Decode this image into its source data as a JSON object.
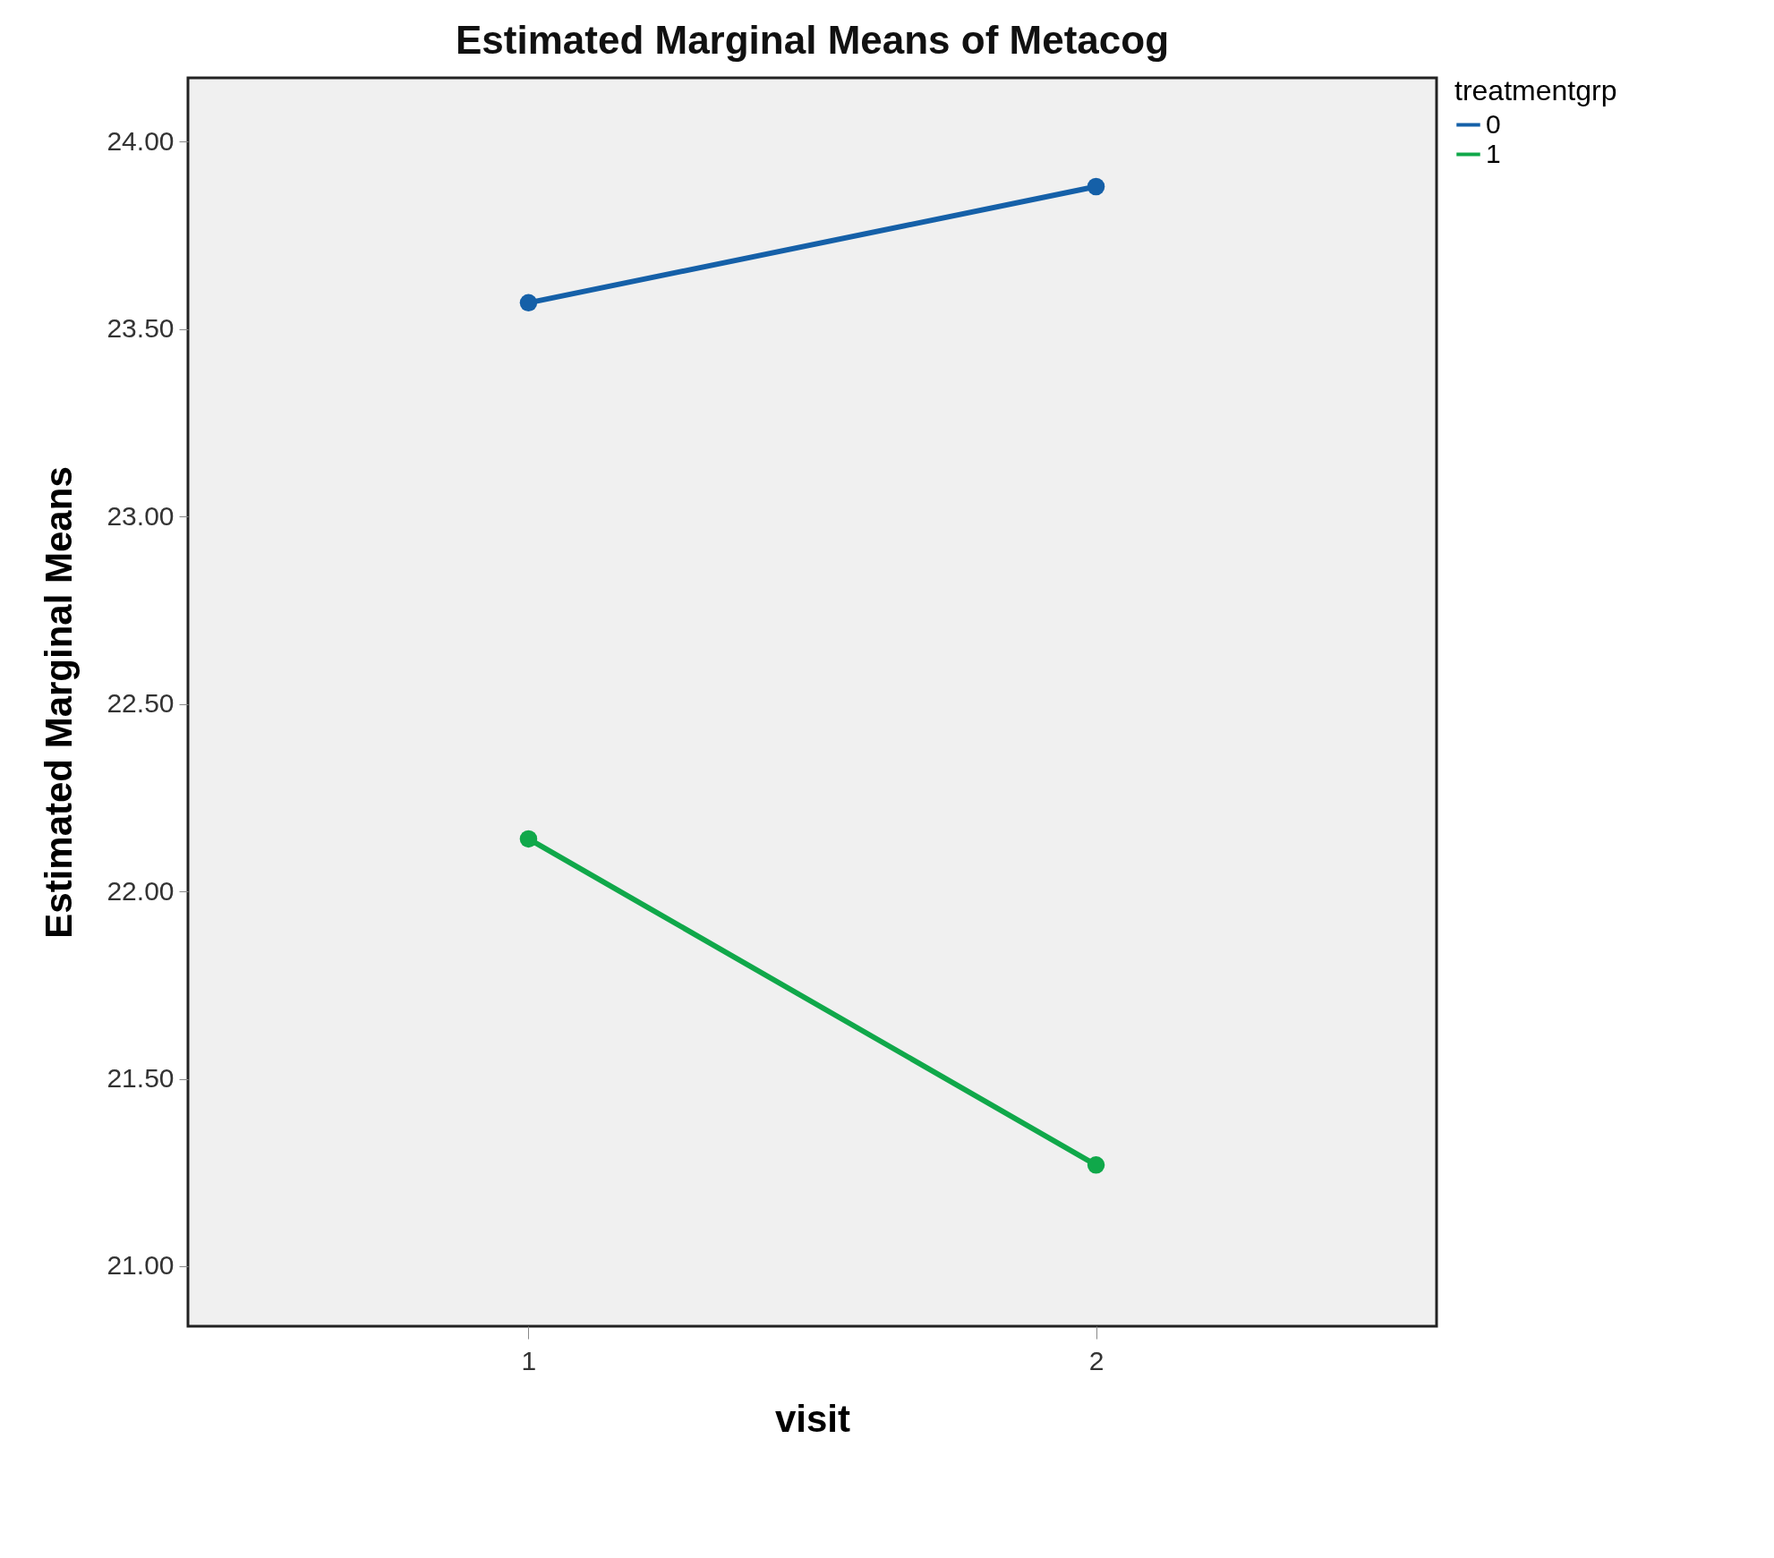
{
  "chart_data": {
    "type": "line",
    "title": "Estimated Marginal Means of Metacog",
    "xlabel": "visit",
    "ylabel": "Estimated Marginal Means",
    "legend_title": "treatmentgrp",
    "categories": [
      "1",
      "2"
    ],
    "series": [
      {
        "name": "0",
        "color": "#1560a8",
        "values": [
          23.57,
          23.88
        ]
      },
      {
        "name": "1",
        "color": "#10a84a",
        "values": [
          22.14,
          21.27
        ]
      }
    ],
    "ylim": [
      20.84,
      24.17
    ],
    "yticks": [
      {
        "value": 21,
        "label": "21.00"
      },
      {
        "value": 21.5,
        "label": "21.50"
      },
      {
        "value": 22,
        "label": "22.00"
      },
      {
        "value": 22.5,
        "label": "22.50"
      },
      {
        "value": 23,
        "label": "23.00"
      },
      {
        "value": 23.5,
        "label": "23.50"
      },
      {
        "value": 24,
        "label": "24.00"
      }
    ],
    "marker": "circle",
    "grid": false,
    "legend": "top right"
  }
}
